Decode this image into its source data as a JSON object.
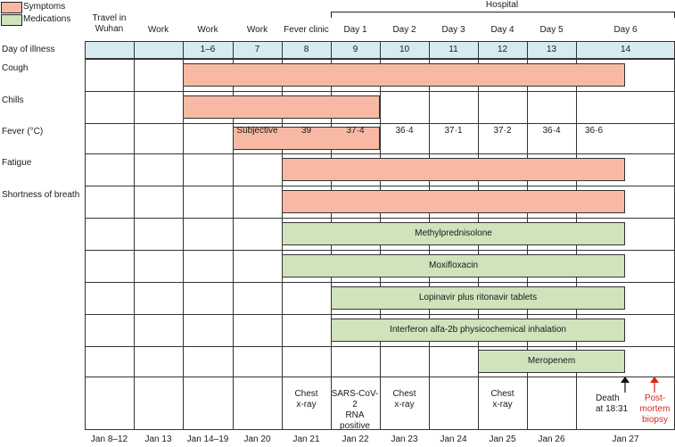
{
  "legend": {
    "symptoms_label": "Symptoms",
    "medications_label": "Medications",
    "symptoms_color": "#f8b9a4",
    "medications_color": "#cfe3bd"
  },
  "hospital_label": "Hospital",
  "day_of_illness_label": "Day of illness",
  "columns": [
    {
      "phase": "Travel in Wuhan",
      "day_of_illness": "",
      "date": "Jan 8–12"
    },
    {
      "phase": "Work",
      "day_of_illness": "",
      "date": "Jan 13"
    },
    {
      "phase": "Work",
      "day_of_illness": "1–6",
      "date": "Jan 14–19"
    },
    {
      "phase": "Work",
      "day_of_illness": "7",
      "date": "Jan 20"
    },
    {
      "phase": "Fever clinic",
      "day_of_illness": "8",
      "date": "Jan 21"
    },
    {
      "phase": "Day 1",
      "day_of_illness": "9",
      "date": "Jan 22"
    },
    {
      "phase": "Day 2",
      "day_of_illness": "10",
      "date": "Jan 23"
    },
    {
      "phase": "Day 3",
      "day_of_illness": "11",
      "date": "Jan 24"
    },
    {
      "phase": "Day 4",
      "day_of_illness": "12",
      "date": "Jan 25"
    },
    {
      "phase": "Day 5",
      "day_of_illness": "13",
      "date": "Jan 26"
    },
    {
      "phase": "Day 6",
      "day_of_illness": "14",
      "date": "Jan 27"
    }
  ],
  "rows": [
    {
      "label": "Cough",
      "type": "symptom",
      "start_col": 2,
      "end_col": 10,
      "text": ""
    },
    {
      "label": "Chills",
      "type": "symptom",
      "start_col": 2,
      "end_col": 5,
      "text": ""
    },
    {
      "label": "Fever (°C)",
      "type": "symptom",
      "start_col": 3,
      "end_col": 5,
      "text": ""
    },
    {
      "label": "Fatigue",
      "type": "symptom",
      "start_col": 4,
      "end_col": 10,
      "text": ""
    },
    {
      "label": "Shortness of breath",
      "type": "symptom",
      "start_col": 4,
      "end_col": 10,
      "text": ""
    },
    {
      "label": "",
      "type": "medication",
      "start_col": 4,
      "end_col": 10,
      "text": "Methylprednisolone"
    },
    {
      "label": "",
      "type": "medication",
      "start_col": 4,
      "end_col": 10,
      "text": "Moxifloxacin"
    },
    {
      "label": "",
      "type": "medication",
      "start_col": 5,
      "end_col": 10,
      "text": "Lopinavir plus ritonavir tablets"
    },
    {
      "label": "",
      "type": "medication",
      "start_col": 5,
      "end_col": 10,
      "text": "Interferon alfa-2b physicochemical inhalation"
    },
    {
      "label": "",
      "type": "medication",
      "start_col": 8,
      "end_col": 10,
      "text": "Meropenem"
    }
  ],
  "fever_values": [
    "Subjective",
    "39",
    "37·4",
    "36·4",
    "37·1",
    "37·2",
    "36·4",
    "36·6"
  ],
  "events": {
    "chest_xray_1": "Chest\nx-ray",
    "sars_test": "SARS-CoV-2\nRNA\npositive",
    "chest_xray_2": "Chest\nx-ray",
    "chest_xray_3": "Chest\nx-ray",
    "death": "Death\nat 18:31",
    "biopsy": "Post-\nmortem\nbiopsy",
    "biopsy_color": "#d9251d"
  }
}
